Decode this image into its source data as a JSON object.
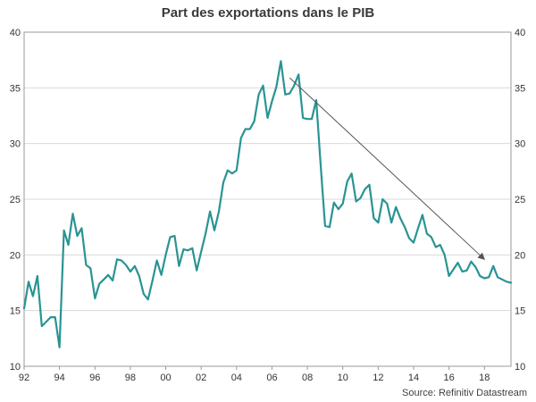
{
  "chart_data": {
    "type": "line",
    "title": "Part des exportations dans le PIB",
    "source": "Source: Refinitiv Datastream",
    "xlim": [
      1992.0,
      2019.5
    ],
    "ylim": [
      10,
      40
    ],
    "yticks": [
      10,
      15,
      20,
      25,
      30,
      35,
      40
    ],
    "xticks": [
      {
        "value": 1992,
        "label": "92"
      },
      {
        "value": 1994,
        "label": "94"
      },
      {
        "value": 1996,
        "label": "96"
      },
      {
        "value": 1998,
        "label": "98"
      },
      {
        "value": 2000,
        "label": "00"
      },
      {
        "value": 2002,
        "label": "02"
      },
      {
        "value": 2004,
        "label": "04"
      },
      {
        "value": 2006,
        "label": "06"
      },
      {
        "value": 2008,
        "label": "08"
      },
      {
        "value": 2010,
        "label": "10"
      },
      {
        "value": 2012,
        "label": "12"
      },
      {
        "value": 2014,
        "label": "14"
      },
      {
        "value": 2016,
        "label": "16"
      },
      {
        "value": 2018,
        "label": "18"
      }
    ],
    "grid": true,
    "legend": "none",
    "series": [
      {
        "color": "#2a9393",
        "points": [
          [
            1992.0,
            15.2
          ],
          [
            1992.25,
            17.6
          ],
          [
            1992.5,
            16.3
          ],
          [
            1992.75,
            18.1
          ],
          [
            1993.0,
            13.6
          ],
          [
            1993.25,
            14.0
          ],
          [
            1993.5,
            14.4
          ],
          [
            1993.75,
            14.4
          ],
          [
            1994.0,
            11.7
          ],
          [
            1994.25,
            22.2
          ],
          [
            1994.5,
            20.9
          ],
          [
            1994.75,
            23.7
          ],
          [
            1995.0,
            21.7
          ],
          [
            1995.25,
            22.4
          ],
          [
            1995.5,
            19.1
          ],
          [
            1995.75,
            18.8
          ],
          [
            1996.0,
            16.1
          ],
          [
            1996.25,
            17.4
          ],
          [
            1996.5,
            17.8
          ],
          [
            1996.75,
            18.2
          ],
          [
            1997.0,
            17.7
          ],
          [
            1997.25,
            19.6
          ],
          [
            1997.5,
            19.5
          ],
          [
            1997.75,
            19.1
          ],
          [
            1998.0,
            18.5
          ],
          [
            1998.25,
            19.0
          ],
          [
            1998.5,
            18.1
          ],
          [
            1998.75,
            16.5
          ],
          [
            1999.0,
            16.0
          ],
          [
            1999.25,
            17.7
          ],
          [
            1999.5,
            19.5
          ],
          [
            1999.75,
            18.2
          ],
          [
            2000.0,
            20.0
          ],
          [
            2000.25,
            21.6
          ],
          [
            2000.5,
            21.7
          ],
          [
            2000.75,
            19.0
          ],
          [
            2001.0,
            20.5
          ],
          [
            2001.25,
            20.4
          ],
          [
            2001.5,
            20.6
          ],
          [
            2001.75,
            18.6
          ],
          [
            2002.0,
            20.3
          ],
          [
            2002.25,
            21.9
          ],
          [
            2002.5,
            23.9
          ],
          [
            2002.75,
            22.2
          ],
          [
            2003.0,
            23.9
          ],
          [
            2003.25,
            26.5
          ],
          [
            2003.5,
            27.6
          ],
          [
            2003.75,
            27.3
          ],
          [
            2004.0,
            27.6
          ],
          [
            2004.25,
            30.5
          ],
          [
            2004.5,
            31.3
          ],
          [
            2004.75,
            31.3
          ],
          [
            2005.0,
            32.0
          ],
          [
            2005.25,
            34.4
          ],
          [
            2005.5,
            35.2
          ],
          [
            2005.75,
            32.3
          ],
          [
            2006.0,
            33.8
          ],
          [
            2006.25,
            35.1
          ],
          [
            2006.5,
            37.4
          ],
          [
            2006.75,
            34.4
          ],
          [
            2007.0,
            34.5
          ],
          [
            2007.25,
            35.2
          ],
          [
            2007.5,
            36.2
          ],
          [
            2007.75,
            32.3
          ],
          [
            2008.0,
            32.2
          ],
          [
            2008.25,
            32.2
          ],
          [
            2008.5,
            33.9
          ],
          [
            2008.75,
            28.0
          ],
          [
            2009.0,
            22.6
          ],
          [
            2009.25,
            22.5
          ],
          [
            2009.5,
            24.7
          ],
          [
            2009.75,
            24.1
          ],
          [
            2010.0,
            24.6
          ],
          [
            2010.25,
            26.6
          ],
          [
            2010.5,
            27.3
          ],
          [
            2010.75,
            24.8
          ],
          [
            2011.0,
            25.1
          ],
          [
            2011.25,
            25.9
          ],
          [
            2011.5,
            26.3
          ],
          [
            2011.75,
            23.3
          ],
          [
            2012.0,
            22.9
          ],
          [
            2012.25,
            25.0
          ],
          [
            2012.5,
            24.6
          ],
          [
            2012.75,
            22.9
          ],
          [
            2013.0,
            24.3
          ],
          [
            2013.25,
            23.3
          ],
          [
            2013.5,
            22.5
          ],
          [
            2013.75,
            21.5
          ],
          [
            2014.0,
            21.1
          ],
          [
            2014.25,
            22.4
          ],
          [
            2014.5,
            23.6
          ],
          [
            2014.75,
            21.9
          ],
          [
            2015.0,
            21.6
          ],
          [
            2015.25,
            20.7
          ],
          [
            2015.5,
            20.9
          ],
          [
            2015.75,
            20.0
          ],
          [
            2016.0,
            18.1
          ],
          [
            2016.25,
            18.7
          ],
          [
            2016.5,
            19.3
          ],
          [
            2016.75,
            18.5
          ],
          [
            2017.0,
            18.6
          ],
          [
            2017.25,
            19.4
          ],
          [
            2017.5,
            18.9
          ],
          [
            2017.75,
            18.1
          ],
          [
            2018.0,
            17.9
          ],
          [
            2018.25,
            18.0
          ],
          [
            2018.5,
            19.0
          ],
          [
            2018.75,
            18.0
          ],
          [
            2019.0,
            17.8
          ],
          [
            2019.25,
            17.6
          ],
          [
            2019.5,
            17.5
          ]
        ]
      }
    ],
    "annotations": [
      {
        "type": "arrow",
        "color": "#555555",
        "from": [
          2007.0,
          35.9
        ],
        "to": [
          2018.0,
          19.6
        ]
      }
    ]
  }
}
